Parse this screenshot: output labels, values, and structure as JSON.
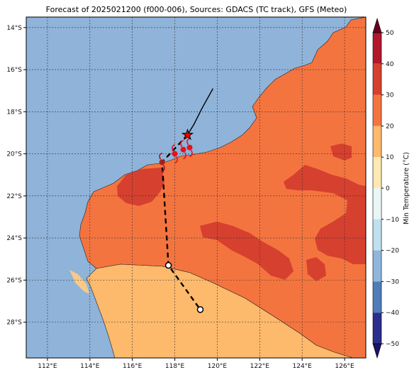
{
  "map": {
    "title": "Forecast of 2025021200 (f000-006), Sources: GDACS (TC track), GFS (Meteo)",
    "lon_range": [
      111,
      127
    ],
    "lat_range": [
      -29.7,
      -13.5
    ],
    "x_ticks": [
      {
        "lon": 112,
        "label": "112°E"
      },
      {
        "lon": 114,
        "label": "114°E"
      },
      {
        "lon": 116,
        "label": "116°E"
      },
      {
        "lon": 118,
        "label": "118°E"
      },
      {
        "lon": 120,
        "label": "120°E"
      },
      {
        "lon": 122,
        "label": "122°E"
      },
      {
        "lon": 124,
        "label": "124°E"
      },
      {
        "lon": 126,
        "label": "126°E"
      }
    ],
    "y_ticks": [
      {
        "lat": -14,
        "label": "14°S"
      },
      {
        "lat": -16,
        "label": "16°S"
      },
      {
        "lat": -18,
        "label": "18°S"
      },
      {
        "lat": -20,
        "label": "20°S"
      },
      {
        "lat": -22,
        "label": "22°S"
      },
      {
        "lat": -24,
        "label": "24°S"
      },
      {
        "lat": -26,
        "label": "26°S"
      },
      {
        "lat": -28,
        "label": "28°S"
      }
    ],
    "gridlines": true
  },
  "colorbar": {
    "label": "Min Temperature (°C)",
    "min": -50,
    "max": 50,
    "ticks": [
      "50",
      "40",
      "30",
      "20",
      "10",
      "0",
      "−10",
      "−20",
      "−30",
      "−40",
      "−50"
    ],
    "levels": [
      {
        "from": 40,
        "to": 50,
        "color": "#b2182b"
      },
      {
        "from": 30,
        "to": 40,
        "color": "#d6402f"
      },
      {
        "from": 20,
        "to": 30,
        "color": "#f4743f"
      },
      {
        "from": 10,
        "to": 20,
        "color": "#fdb96c"
      },
      {
        "from": 0,
        "to": 10,
        "color": "#fee9b2"
      },
      {
        "from": -10,
        "to": 0,
        "color": "#eaf6f6"
      },
      {
        "from": -20,
        "to": -10,
        "color": "#bfe0ee"
      },
      {
        "from": -30,
        "to": -20,
        "color": "#8fb6dc"
      },
      {
        "from": -40,
        "to": -30,
        "color": "#4f7dba"
      },
      {
        "from": -50,
        "to": -40,
        "color": "#2c2e8e"
      }
    ]
  },
  "colors": {
    "ocean": "#8fb3d9",
    "warm_20_30": "#f4743f",
    "hot_30_40": "#d6402f",
    "mild_10_20": "#fdb96c"
  },
  "track": {
    "past": [
      [
        119.8,
        -16.9
      ],
      [
        119.3,
        -17.8
      ],
      [
        118.9,
        -18.6
      ],
      [
        118.6,
        -19.1
      ]
    ],
    "current": [
      118.6,
      -19.1
    ],
    "forecast": [
      [
        117.4,
        -20.4
      ],
      [
        117.7,
        -25.3
      ],
      [
        119.2,
        -27.4
      ]
    ],
    "forecast_points": [
      [
        117.7,
        -25.3
      ],
      [
        119.2,
        -27.4
      ]
    ],
    "cyclone_symbols": [
      [
        117.4,
        -20.4
      ],
      [
        118.0,
        -20.0
      ],
      [
        118.4,
        -19.8
      ],
      [
        118.7,
        -19.7
      ]
    ]
  }
}
